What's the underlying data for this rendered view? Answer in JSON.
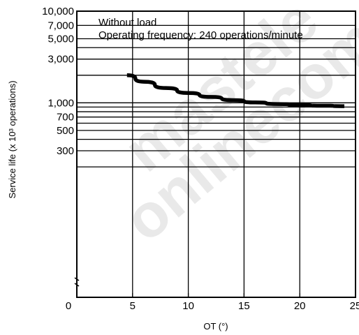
{
  "chart_data": {
    "type": "line",
    "title": "",
    "annotations": [
      "Without load",
      "Operating frequency: 240 operations/minute"
    ],
    "xlabel": "OT (°)",
    "ylabel": "Service life (x 10³ operations)",
    "x_scale": "linear",
    "y_scale": "log",
    "xlim": [
      0,
      25
    ],
    "ylim": [
      10,
      10000
    ],
    "x_ticks": [
      0,
      5,
      10,
      15,
      20,
      25
    ],
    "x_tick_labels": [
      "0",
      "5",
      "10",
      "15",
      "20",
      "25"
    ],
    "y_ticks": [
      10000,
      7000,
      5000,
      3000,
      1000,
      700,
      500,
      300
    ],
    "y_tick_labels": [
      "10,000",
      "7,000",
      "5,000",
      "3,000",
      "1,000",
      "700",
      "500",
      "300"
    ],
    "y_gridlines": [
      10000,
      7000,
      5000,
      4000,
      3000,
      2000,
      1000,
      900,
      800,
      700,
      600,
      500,
      400,
      300,
      200
    ],
    "x_gridlines": [
      5,
      10,
      15,
      20
    ],
    "grid": true,
    "legend": "none",
    "series": [
      {
        "x": [
          4.5,
          6,
          8,
          10,
          12,
          14,
          16,
          18,
          20,
          22,
          24
        ],
        "y": [
          2000,
          1700,
          1450,
          1280,
          1160,
          1070,
          1010,
          970,
          945,
          930,
          920
        ]
      }
    ],
    "colors": {
      "line": "#000000",
      "grid": "#000000",
      "background": "#ffffff",
      "watermark": "#cfcfcf"
    }
  },
  "watermark_text": [
    "mastele",
    "onlinecom"
  ]
}
